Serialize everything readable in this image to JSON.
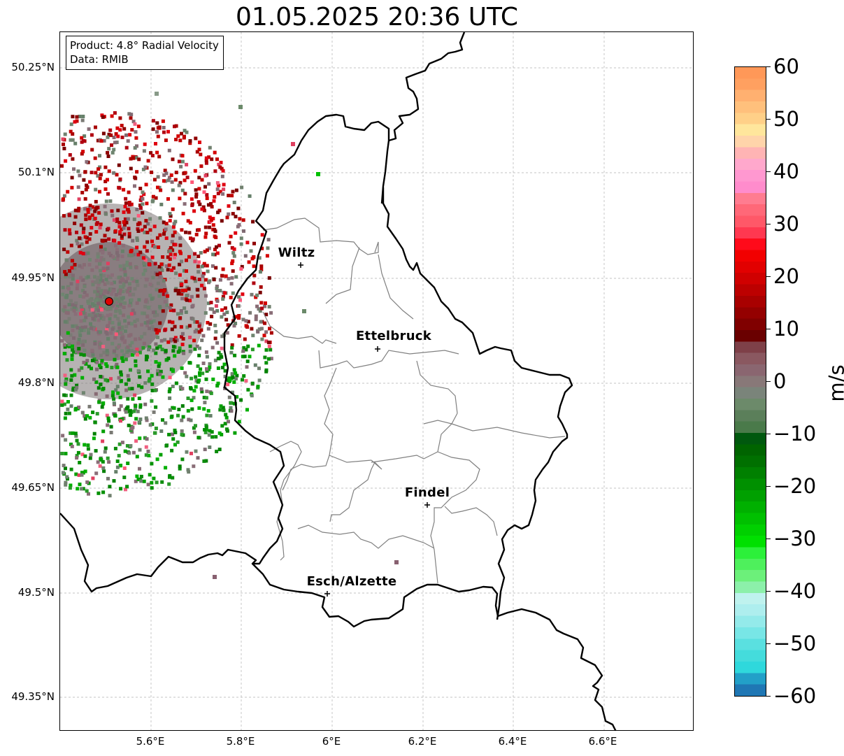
{
  "title": "01.05.2025 20:36 UTC",
  "info_box": {
    "product": "Product: 4.8° Radial Velocity",
    "data": "Data: RMIB"
  },
  "lat_labels": [
    "50.25°N",
    "50.1°N",
    "49.95°N",
    "49.8°N",
    "49.65°N",
    "49.5°N",
    "49.35°N"
  ],
  "lon_labels": [
    "5.6°E",
    "5.8°E",
    "6°E",
    "6.2°E",
    "6.4°E",
    "6.6°E"
  ],
  "cities": [
    {
      "name": "Wiltz"
    },
    {
      "name": "Ettelbruck"
    },
    {
      "name": "Findel"
    },
    {
      "name": "Esch/Alzette"
    }
  ],
  "colorbar": {
    "unit": "m/s",
    "ticks": [
      "60",
      "50",
      "40",
      "30",
      "20",
      "10",
      "0",
      "−10",
      "−20",
      "−30",
      "−40",
      "−50",
      "−60"
    ],
    "range": [
      -60,
      60
    ],
    "colors_bottom_to_top": [
      "#1f77b4",
      "#22a0c8",
      "#2fd8dc",
      "#44dcdc",
      "#5ae0e0",
      "#78e6e6",
      "#94eaea",
      "#aeeeee",
      "#bff2ee",
      "#8cf0aa",
      "#6cf07a",
      "#4ef05c",
      "#2cf03a",
      "#00e000",
      "#00d000",
      "#00c000",
      "#00b000",
      "#00a000",
      "#009000",
      "#008000",
      "#007000",
      "#006400",
      "#00580e",
      "#4a7a4a",
      "#5b7f5a",
      "#6c8a6a",
      "#7a847a",
      "#887878",
      "#8a6670",
      "#8a5860",
      "#7e4048",
      "#6a0000",
      "#800000",
      "#940000",
      "#a80000",
      "#bc0000",
      "#d00000",
      "#e20000",
      "#f20000",
      "#ff0a1a",
      "#ff3850",
      "#ff5868",
      "#ff6878",
      "#ff7c90",
      "#ff8ccc",
      "#ff98d0",
      "#ffa8cc",
      "#ffb4b4",
      "#ffd4aa",
      "#ffe69c",
      "#ffd088",
      "#ffc07c",
      "#ffb070",
      "#ffa060",
      "#ff9858"
    ]
  },
  "radar": {
    "site_marker_color": "#e00000"
  }
}
